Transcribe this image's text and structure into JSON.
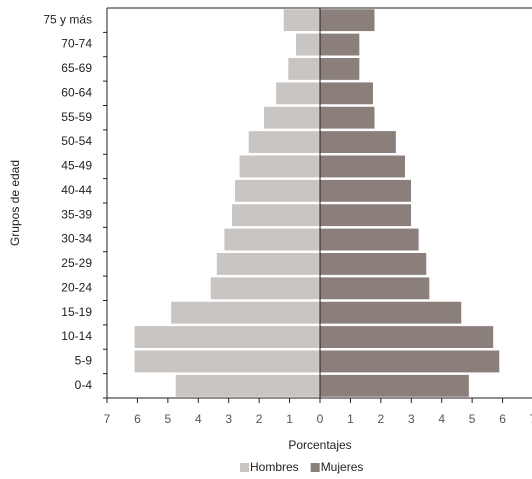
{
  "chart_data": {
    "type": "pyramid",
    "xlabel": "Porcentajes",
    "ylabel": "Grupos de edad",
    "categories": [
      "75 y más",
      "70-74",
      "65-69",
      "60-64",
      "55-59",
      "50-54",
      "45-49",
      "40-44",
      "35-39",
      "30-34",
      "25-29",
      "20-24",
      "15-19",
      "10-14",
      "5-9",
      "0-4"
    ],
    "series": [
      {
        "name": "Hombres",
        "color": "#c9c5c2",
        "side": "left",
        "values": [
          1.2,
          0.8,
          1.05,
          1.45,
          1.85,
          2.35,
          2.65,
          2.8,
          2.9,
          3.15,
          3.4,
          3.6,
          4.9,
          6.1,
          6.1,
          4.75
        ]
      },
      {
        "name": "Mujeres",
        "color": "#8a7f7b",
        "side": "right",
        "values": [
          1.8,
          1.3,
          1.3,
          1.75,
          1.8,
          2.5,
          2.8,
          3.0,
          3.0,
          3.25,
          3.5,
          3.6,
          4.65,
          5.7,
          5.9,
          4.9
        ]
      }
    ],
    "xlim": [
      -7,
      7
    ],
    "xticks": [
      {
        "value": -7,
        "label": "7"
      },
      {
        "value": -6,
        "label": "6"
      },
      {
        "value": -5,
        "label": "5"
      },
      {
        "value": -4,
        "label": "4"
      },
      {
        "value": -3,
        "label": "3"
      },
      {
        "value": -2,
        "label": "2"
      },
      {
        "value": -1,
        "label": "1"
      },
      0,
      1,
      2,
      3,
      4,
      5,
      6,
      7
    ]
  }
}
